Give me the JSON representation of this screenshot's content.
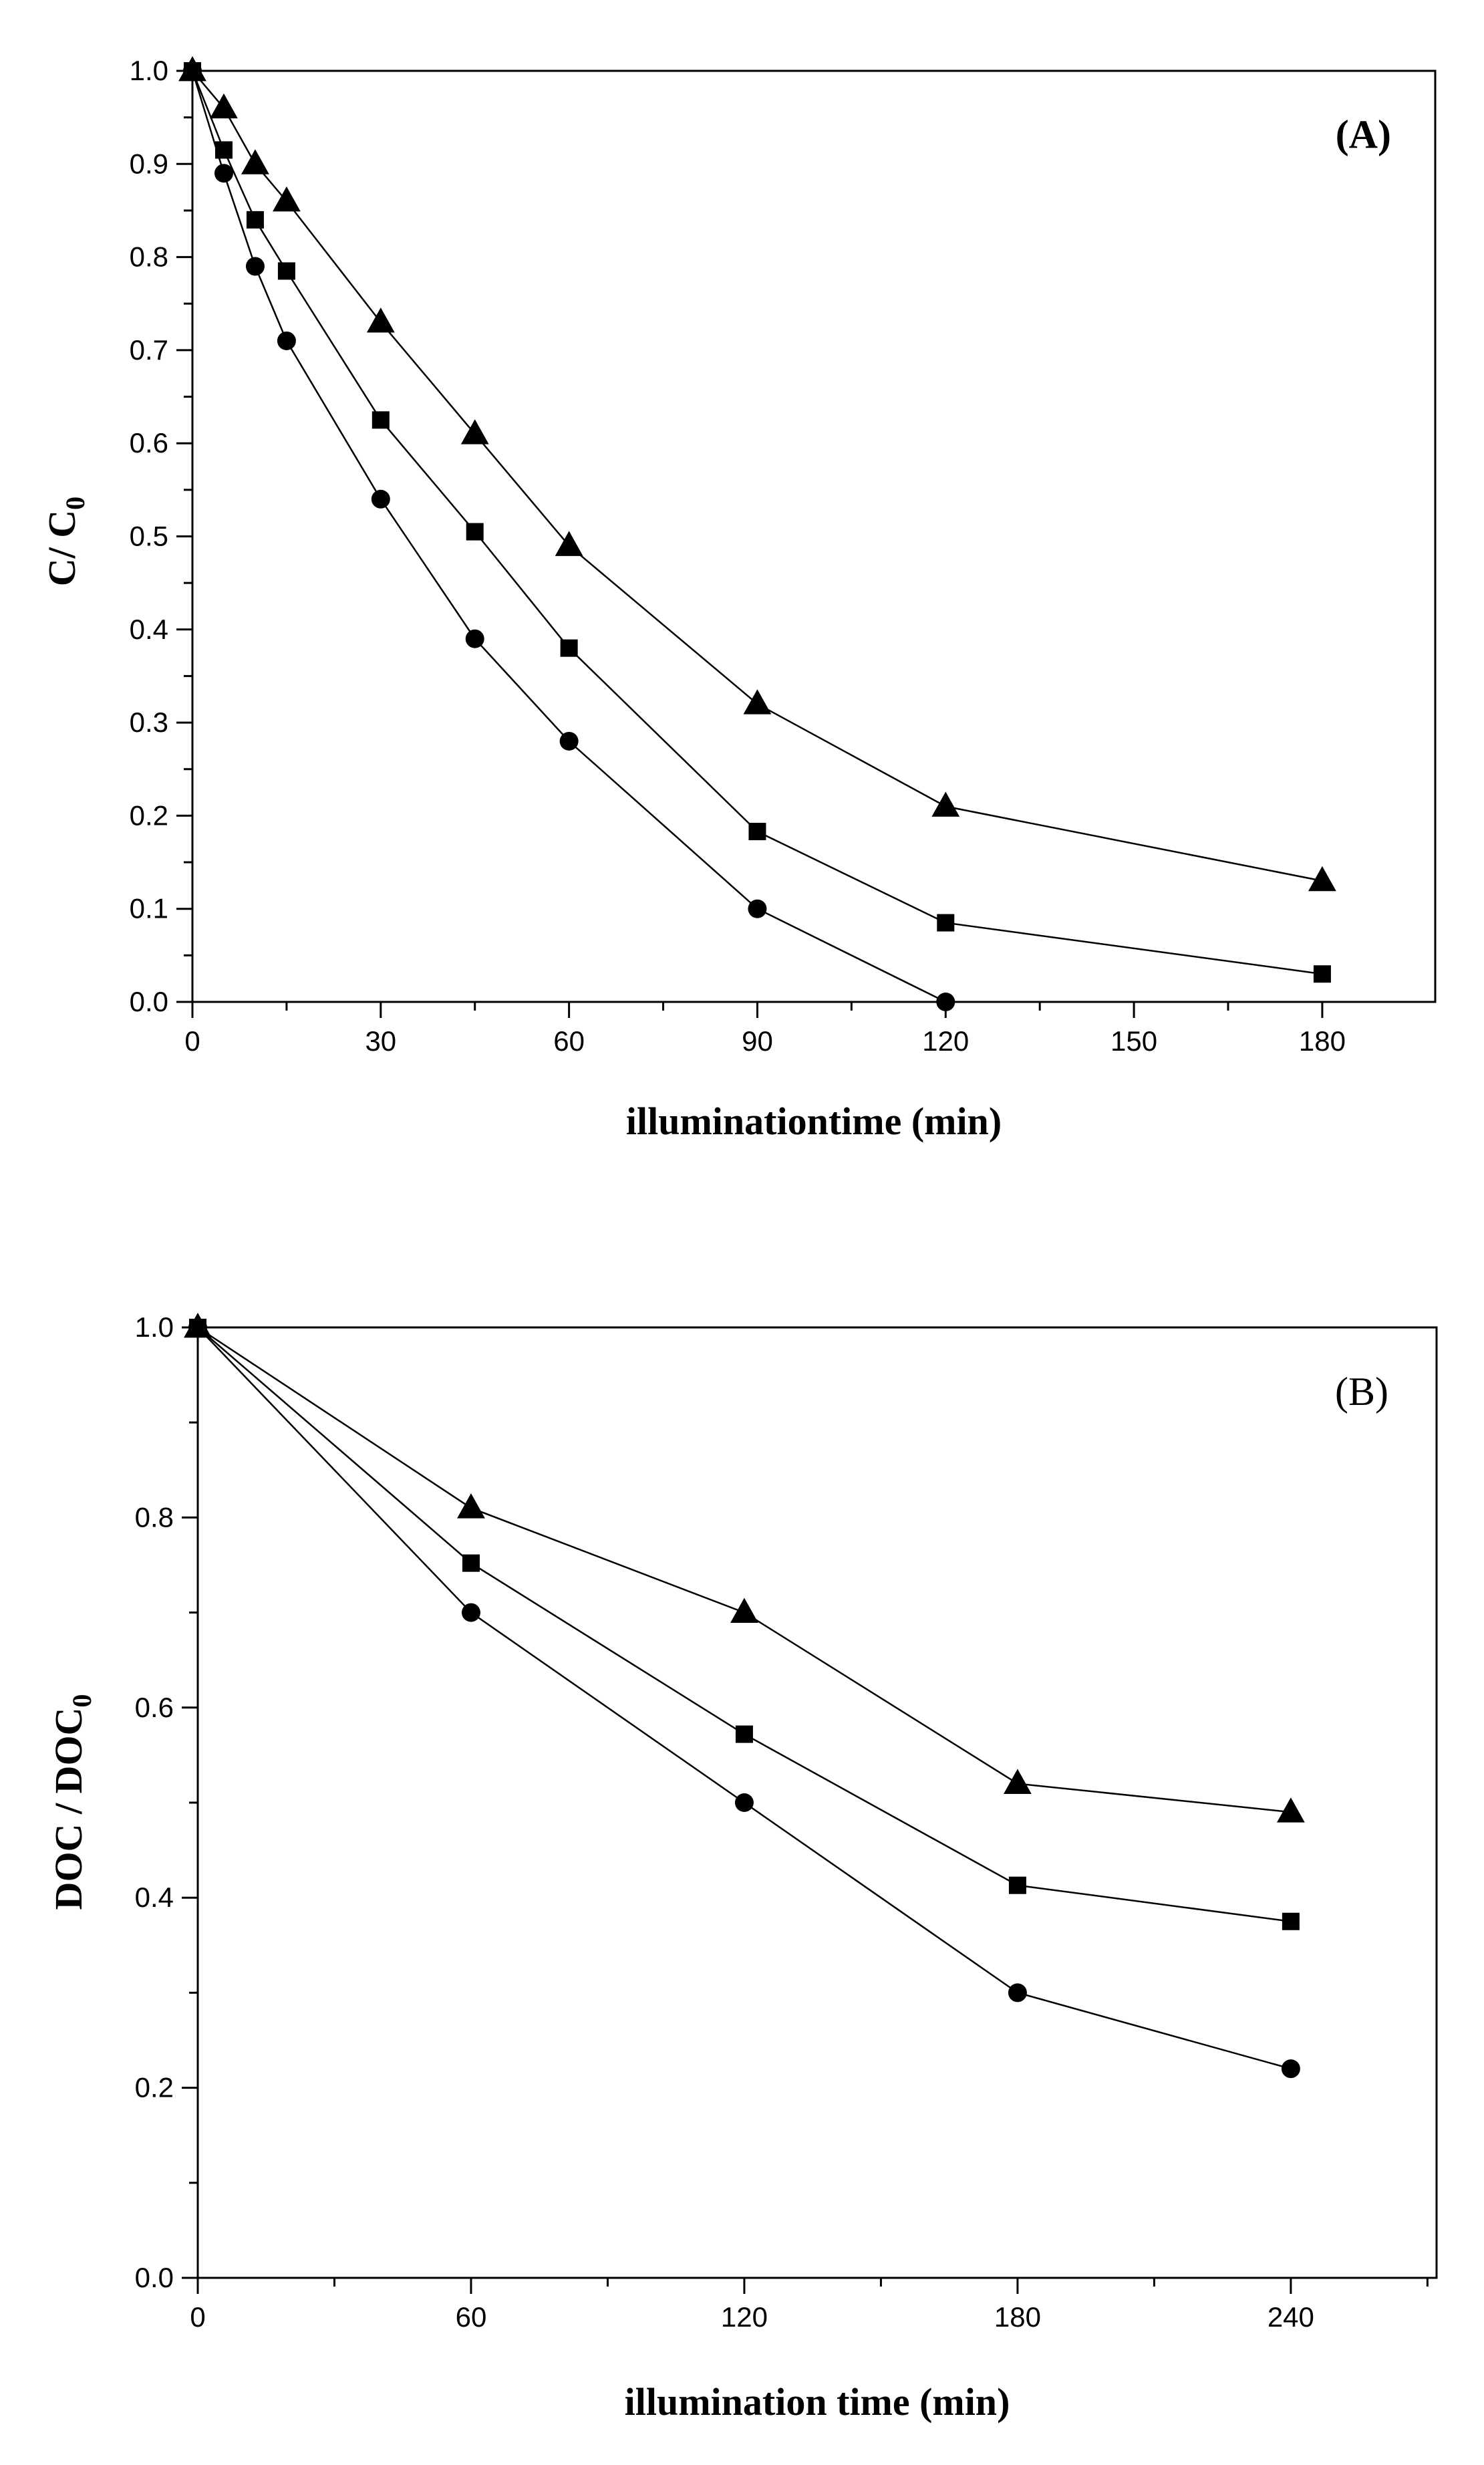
{
  "chart_data": [
    {
      "type": "line",
      "panel_label": "(A)",
      "xlabel": "illuminationtime (min)",
      "ylabel_main": "C/ C",
      "ylabel_sub": "0",
      "xlim": [
        0,
        198
      ],
      "ylim": [
        0,
        1.0
      ],
      "x_ticks": [
        0,
        30,
        60,
        90,
        120,
        150,
        180
      ],
      "x_minor_ticks": [
        15,
        45,
        75,
        105,
        135,
        165
      ],
      "y_ticks": [
        0.0,
        0.1,
        0.2,
        0.3,
        0.4,
        0.5,
        0.6,
        0.7,
        0.8,
        0.9,
        1.0
      ],
      "y_minor_ticks": [
        0.05,
        0.15,
        0.25,
        0.35,
        0.45,
        0.55,
        0.65,
        0.75,
        0.85,
        0.95
      ],
      "x_tick_labels": [
        "0",
        "30",
        "60",
        "90",
        "120",
        "150",
        "180"
      ],
      "y_tick_labels": [
        "0.0",
        "0.1",
        "0.2",
        "0.3",
        "0.4",
        "0.5",
        "0.6",
        "0.7",
        "0.8",
        "0.9",
        "1.0"
      ],
      "series": [
        {
          "marker": "triangle",
          "x": [
            0,
            5,
            10,
            15,
            30,
            45,
            60,
            90,
            120,
            180
          ],
          "values": [
            1.0,
            0.96,
            0.9,
            0.86,
            0.73,
            0.61,
            0.49,
            0.32,
            0.21,
            0.13
          ]
        },
        {
          "marker": "square",
          "x": [
            0,
            5,
            10,
            15,
            30,
            45,
            60,
            90,
            120,
            180
          ],
          "values": [
            1.0,
            0.915,
            0.84,
            0.785,
            0.625,
            0.505,
            0.38,
            0.183,
            0.085,
            0.03
          ]
        },
        {
          "marker": "circle",
          "x": [
            0,
            5,
            10,
            15,
            30,
            45,
            60,
            90,
            120
          ],
          "values": [
            1.0,
            0.89,
            0.79,
            0.71,
            0.54,
            0.39,
            0.28,
            0.1,
            0.0
          ]
        }
      ]
    },
    {
      "type": "line",
      "panel_label": "(B)",
      "xlabel": "illumination time (min)",
      "ylabel_main": "DOC / DOC",
      "ylabel_sub": "0",
      "xlim": [
        0,
        272
      ],
      "ylim": [
        0,
        1.0
      ],
      "x_ticks": [
        0,
        60,
        120,
        180,
        240
      ],
      "x_minor_ticks": [
        30,
        90,
        150,
        210,
        270
      ],
      "y_ticks": [
        0.0,
        0.2,
        0.4,
        0.6,
        0.8,
        1.0
      ],
      "y_minor_ticks": [
        0.1,
        0.3,
        0.5,
        0.7,
        0.9
      ],
      "x_tick_labels": [
        "0",
        "60",
        "120",
        "180",
        "240"
      ],
      "y_tick_labels": [
        "0.0",
        "0.2",
        "0.4",
        "0.6",
        "0.8",
        "1.0"
      ],
      "series": [
        {
          "marker": "triangle",
          "x": [
            0,
            60,
            120,
            180,
            240
          ],
          "values": [
            1.0,
            0.81,
            0.7,
            0.52,
            0.49
          ]
        },
        {
          "marker": "square",
          "x": [
            0,
            60,
            120,
            180,
            240
          ],
          "values": [
            1.0,
            0.752,
            0.572,
            0.413,
            0.375
          ]
        },
        {
          "marker": "circle",
          "x": [
            0,
            60,
            120,
            180,
            240
          ],
          "values": [
            1.0,
            0.7,
            0.5,
            0.3,
            0.22
          ]
        }
      ]
    }
  ]
}
